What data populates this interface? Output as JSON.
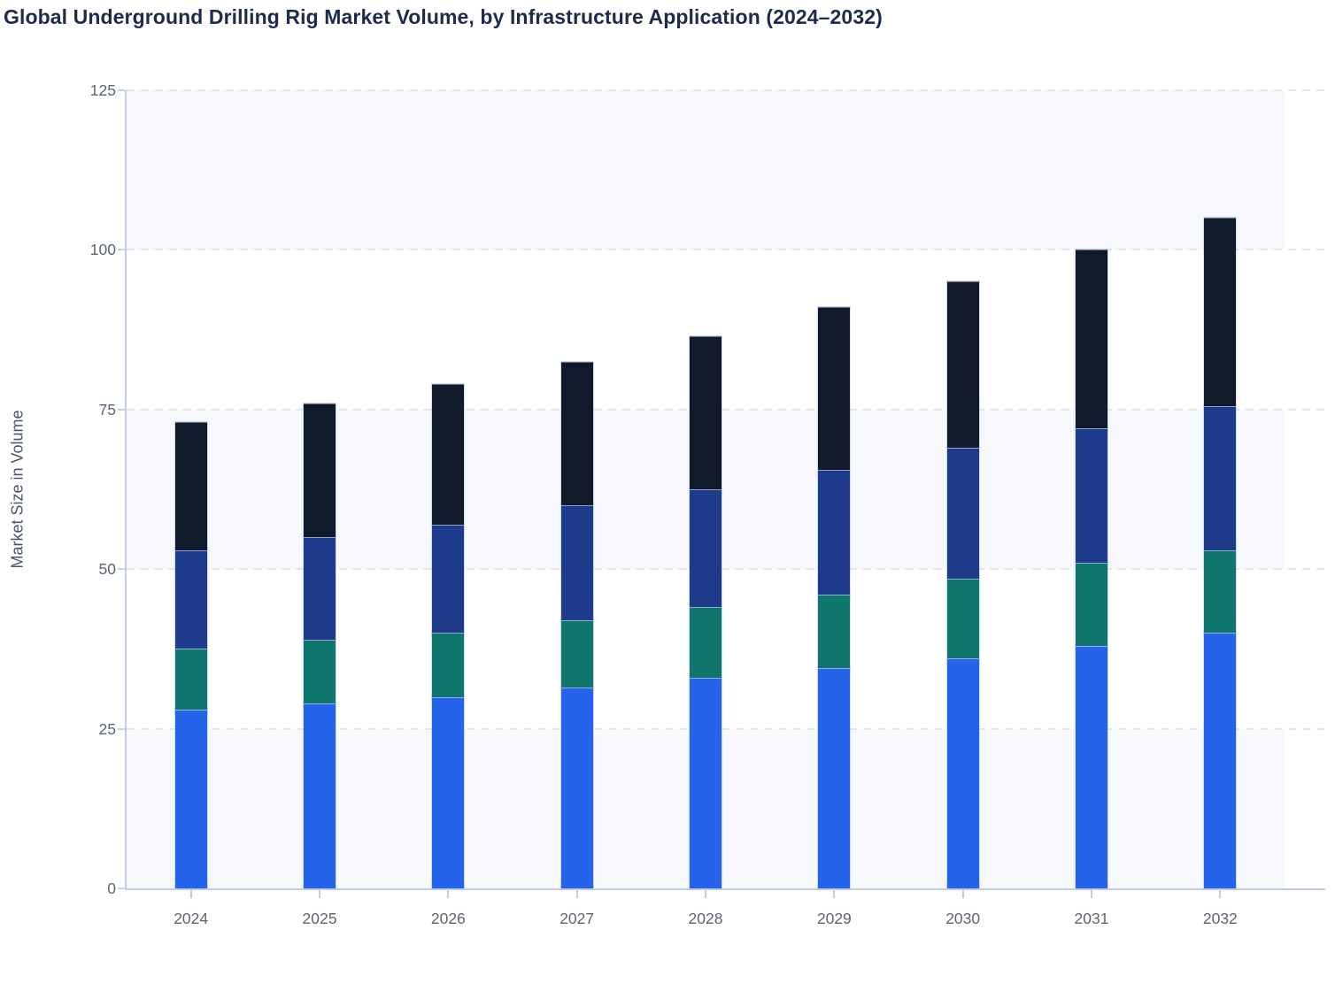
{
  "chart_data": {
    "type": "bar",
    "stacked": true,
    "title": "Global Underground Drilling Rig Market Volume, by Infrastructure Application (2024–2032)",
    "xlabel": "",
    "ylabel": "Market Size in Volume",
    "ylim": [
      0,
      125
    ],
    "yticks": [
      0,
      25,
      50,
      75,
      100,
      125
    ],
    "categories": [
      "2024",
      "2025",
      "2026",
      "2027",
      "2028",
      "2029",
      "2030",
      "2031",
      "2032"
    ],
    "series": [
      {
        "name": "segment-1-bottom-blue",
        "color": "#2563eb",
        "values": [
          28,
          29,
          30,
          31.5,
          33,
          34.5,
          36,
          38,
          40
        ]
      },
      {
        "name": "segment-2-teal",
        "color": "#0f766e",
        "values": [
          9.5,
          10,
          10,
          10.5,
          11,
          11.5,
          12.5,
          13,
          13
        ]
      },
      {
        "name": "segment-3-navy",
        "color": "#1e3a8a",
        "values": [
          15.5,
          16,
          17,
          18,
          18.5,
          19.5,
          20.5,
          21,
          22.5
        ]
      },
      {
        "name": "segment-4-top-dark",
        "color": "#111a2b",
        "values": [
          20,
          21,
          22,
          22.5,
          24,
          25.5,
          26,
          28,
          29.5
        ]
      }
    ],
    "stack_totals": [
      73,
      76,
      79,
      82.5,
      86.5,
      91,
      95,
      100,
      105
    ],
    "legend": "none",
    "grid": "dashed-horizontal",
    "shaded_band_ranges": [
      [
        0,
        25
      ],
      [
        50,
        75
      ],
      [
        100,
        125
      ]
    ],
    "colors": {
      "band_fill": "#f7f8fb",
      "gridline": "#e2e5ec",
      "axis_line": "#c2cce4",
      "tick_label": "#5b6472",
      "axis_title": "#4b5563",
      "chart_title": "#1f2b4d",
      "background": "#ffffff"
    }
  }
}
